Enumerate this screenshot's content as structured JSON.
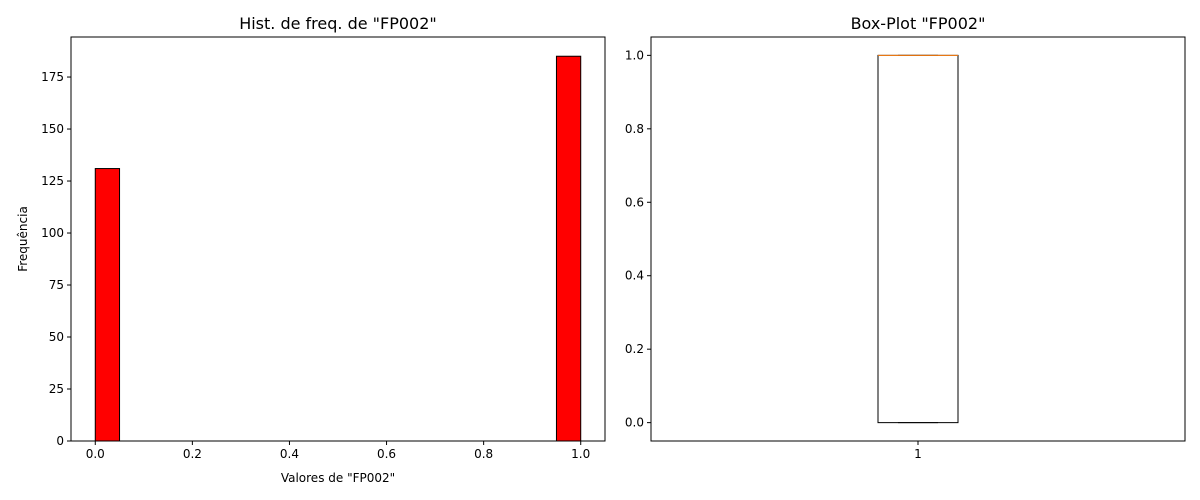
{
  "chart_data": [
    {
      "type": "histogram",
      "title": "Hist. de freq. de \"FP002\"",
      "xlabel": "Valores de \"FP002\"",
      "ylabel": "Frequência",
      "bins": 20,
      "bars": [
        {
          "x_start": 0.0,
          "x_end": 0.05,
          "count": 131
        },
        {
          "x_start": 0.95,
          "x_end": 1.0,
          "count": 185
        }
      ],
      "xlim": [
        -0.05,
        1.05
      ],
      "ylim": [
        0,
        194.25
      ],
      "xticks": [
        "0.0",
        "0.2",
        "0.4",
        "0.6",
        "0.8",
        "1.0"
      ],
      "yticks": [
        "0",
        "25",
        "50",
        "75",
        "100",
        "125",
        "150",
        "175"
      ],
      "bar_color": "#ff0000",
      "edge_color": "#000000",
      "grid": false
    },
    {
      "type": "boxplot",
      "title": "Box-Plot \"FP002\"",
      "xlabel": "",
      "ylabel": "",
      "categories": [
        "1"
      ],
      "stats": {
        "min": 0.0,
        "q1": 0.0,
        "median": 1.0,
        "q3": 1.0,
        "max": 1.0
      },
      "ylim": [
        -0.05,
        1.05
      ],
      "yticks": [
        "0.0",
        "0.2",
        "0.4",
        "0.6",
        "0.8",
        "1.0"
      ],
      "median_color": "#ff7f0e",
      "grid": false
    }
  ]
}
